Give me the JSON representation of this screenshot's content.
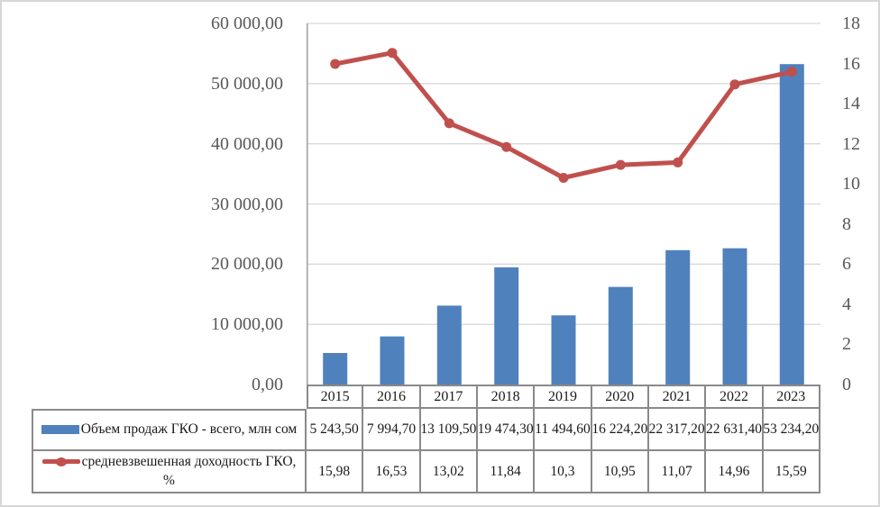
{
  "chart_data": {
    "type": "bar",
    "subtype": "combo-bar-line-dual-axis",
    "categories": [
      "2015",
      "2016",
      "2017",
      "2018",
      "2019",
      "2020",
      "2021",
      "2022",
      "2023"
    ],
    "series": [
      {
        "name": "Объем продаж ГКО - всего, млн сом",
        "type": "bar",
        "axis": "left",
        "color": "#4F81BD",
        "values": [
          5243.5,
          7994.7,
          13109.5,
          19474.3,
          11494.6,
          16224.2,
          22317.2,
          22631.4,
          53234.2
        ],
        "labels": [
          "5 243,50",
          "7 994,70",
          "13 109,50",
          "19 474,30",
          "11 494,60",
          "16 224,20",
          "22 317,20",
          "22 631,40",
          "53 234,20"
        ]
      },
      {
        "name": "средневзвешенная доходность ГКО, %",
        "type": "line",
        "axis": "right",
        "color": "#C0504D",
        "values": [
          15.98,
          16.53,
          13.02,
          11.84,
          10.3,
          10.95,
          11.07,
          14.96,
          15.59
        ],
        "labels": [
          "15,98",
          "16,53",
          "13,02",
          "11,84",
          "10,3",
          "10,95",
          "11,07",
          "14,96",
          "15,59"
        ]
      }
    ],
    "left_axis": {
      "min": 0,
      "max": 60000,
      "step": 10000,
      "tick_labels": [
        "0,00",
        "10 000,00",
        "20 000,00",
        "30 000,00",
        "40 000,00",
        "50 000,00",
        "60 000,00"
      ]
    },
    "right_axis": {
      "min": 0,
      "max": 18,
      "step": 2,
      "tick_labels": [
        "0",
        "2",
        "4",
        "6",
        "8",
        "10",
        "12",
        "14",
        "16",
        "18"
      ]
    },
    "title": "",
    "xlabel": "",
    "ylabel": "",
    "grid": true,
    "legend_position": "data-table-left-column",
    "colors": {
      "gridline": "#D9D9D9",
      "axis_line": "#9E9E9E",
      "table_border": "#8A8A8A",
      "axis_text": "#595959",
      "table_text": "#1A1A1A",
      "background": "#FFFFFF",
      "frame_border": "#D7D7D7"
    }
  }
}
